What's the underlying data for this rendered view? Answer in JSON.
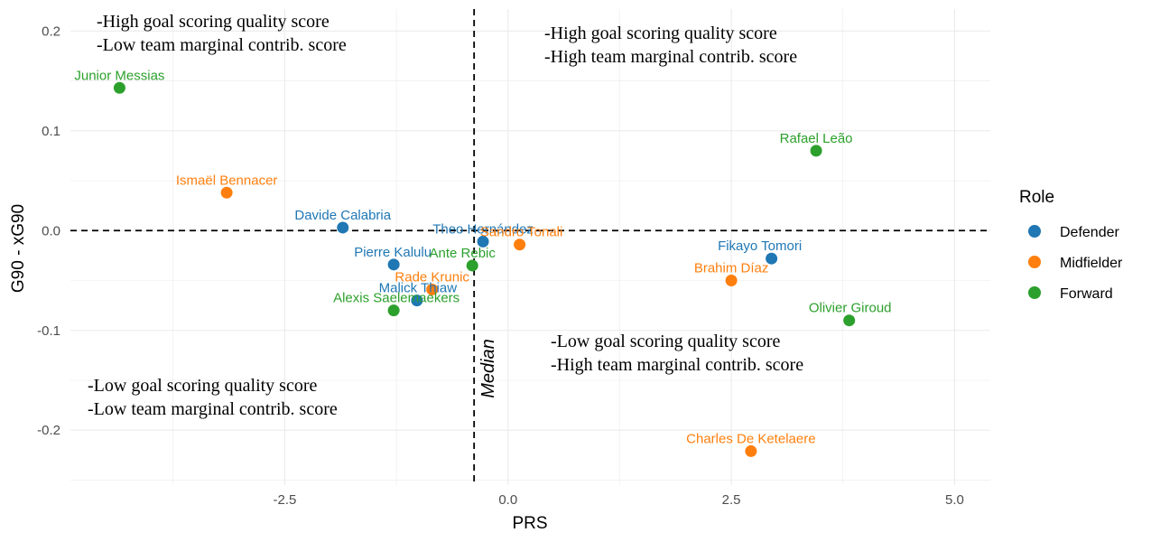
{
  "chart_data": {
    "type": "scatter",
    "xlabel": "PRS",
    "ylabel": "G90 - xG90",
    "xlim": [
      -4.9,
      5.4
    ],
    "ylim": [
      -0.255,
      0.222
    ],
    "x_ticks": [
      -2.5,
      0.0,
      2.5,
      5.0
    ],
    "x_tick_labels": [
      "-2.5",
      "0.0",
      "2.5",
      "5.0"
    ],
    "y_ticks": [
      -0.2,
      -0.1,
      0.0,
      0.1,
      0.2
    ],
    "y_tick_labels": [
      "-0.2",
      "-0.1",
      "0.0",
      "0.1",
      "0.2"
    ],
    "grid": true,
    "vline": {
      "x": -0.38,
      "label": "Median"
    },
    "hline": {
      "y": 0.0
    },
    "quadrant_annotations": [
      {
        "id": "top-left",
        "lines": [
          "-High goal scoring quality score",
          "-Low team marginal contrib. score"
        ]
      },
      {
        "id": "top-right",
        "lines": [
          "-High goal scoring quality score",
          "-High team marginal contrib. score"
        ]
      },
      {
        "id": "bottom-right",
        "lines": [
          "-Low goal scoring quality score",
          "-High team marginal contrib. score"
        ]
      },
      {
        "id": "bottom-left",
        "lines": [
          "-Low goal scoring quality score",
          "-Low team marginal contrib. score"
        ]
      }
    ],
    "legend": {
      "title": "Role",
      "position": "right",
      "entries": [
        {
          "label": "Defender",
          "color": "#1f77b4"
        },
        {
          "label": "Midfielder",
          "color": "#ff7f0e"
        },
        {
          "label": "Forward",
          "color": "#2ca02c"
        }
      ]
    },
    "points": [
      {
        "name": "Junior Messias",
        "role": "Forward",
        "x": -4.35,
        "y": 0.143
      },
      {
        "name": "Ismaël Bennacer",
        "role": "Midfielder",
        "x": -3.15,
        "y": 0.038
      },
      {
        "name": "Davide Calabria",
        "role": "Defender",
        "x": -1.85,
        "y": 0.003
      },
      {
        "name": "Pierre Kalulu",
        "role": "Defender",
        "x": -1.28,
        "y": -0.034
      },
      {
        "name": "Malick Thiaw",
        "role": "Defender",
        "x": -1.02,
        "y": -0.07
      },
      {
        "name": "Rade Krunic",
        "role": "Midfielder",
        "x": -0.85,
        "y": -0.059
      },
      {
        "name": "Alexis Saelemaekers",
        "role": "Forward",
        "x": -1.28,
        "y": -0.08
      },
      {
        "name": "Ante Rebic",
        "role": "Forward",
        "x": -0.4,
        "y": -0.035
      },
      {
        "name": "Theo Hernández",
        "role": "Defender",
        "x": -0.28,
        "y": -0.011
      },
      {
        "name": "Sandro Tonali",
        "role": "Midfielder",
        "x": 0.13,
        "y": -0.014
      },
      {
        "name": "Rafael Leão",
        "role": "Forward",
        "x": 3.45,
        "y": 0.08
      },
      {
        "name": "Fikayo Tomori",
        "role": "Defender",
        "x": 2.95,
        "y": -0.028
      },
      {
        "name": "Brahim Díaz",
        "role": "Midfielder",
        "x": 2.5,
        "y": -0.05
      },
      {
        "name": "Olivier Giroud",
        "role": "Forward",
        "x": 3.82,
        "y": -0.09
      },
      {
        "name": "Charles De Ketelaere",
        "role": "Midfielder",
        "x": 2.72,
        "y": -0.221
      }
    ]
  }
}
